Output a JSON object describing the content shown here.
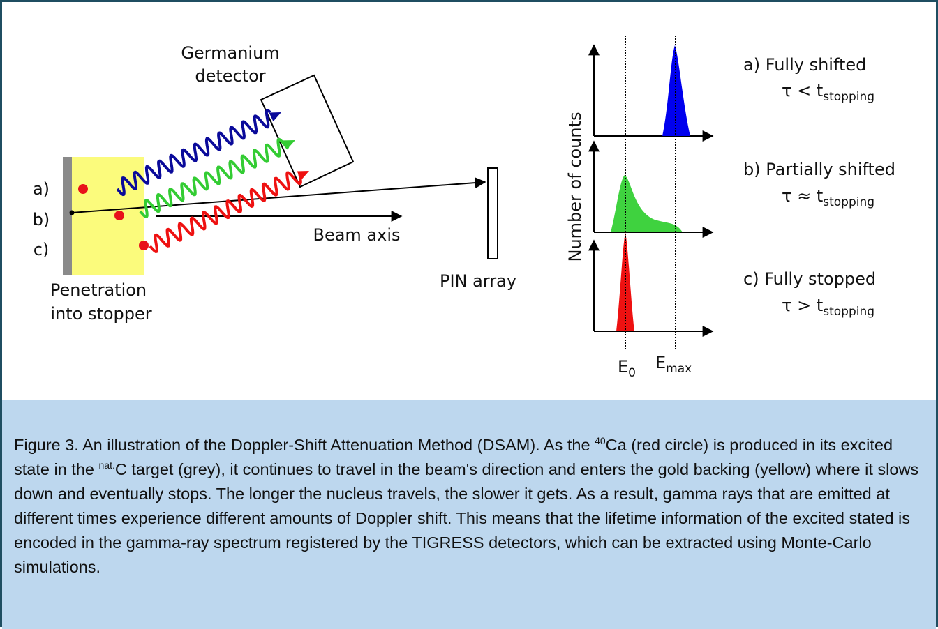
{
  "diagram": {
    "detector_label": [
      "Germanium",
      "detector"
    ],
    "sample_labels": [
      "a)",
      "b)",
      "c)"
    ],
    "beam_label": "Beam axis",
    "pin_label": "PIN array",
    "stopper_label": [
      "Penetration",
      "into stopper"
    ],
    "y_axis_label": "Number of counts",
    "energy_labels": [
      {
        "base": "E",
        "sub": "0"
      },
      {
        "base": "E",
        "sub": "max"
      }
    ],
    "cases": [
      {
        "title": "a) Fully shifted",
        "relation": "τ < t",
        "sub": "stopping"
      },
      {
        "title": "b) Partially shifted",
        "relation": "τ ≈ t",
        "sub": "stopping"
      },
      {
        "title": "c) Fully stopped",
        "relation": "τ > t",
        "sub": "stopping"
      }
    ]
  },
  "caption": {
    "segments": [
      "Figure 3. An illustration of the Doppler-Shift Attenuation Method (DSAM). As the ",
      "Ca (red circle) is produced in its excited state in the ",
      "C target (grey), it continues to travel in the beam's direction and enters the gold backing (yellow) where it slows down and eventually stops. The longer the nucleus travels, the slower it gets. As a result, gamma rays that are emitted at different times experience different amounts of Doppler shift. This means that the lifetime information of the excited stated is encoded in the gamma-ray spectrum registered by the TIGRESS detectors, which can be extracted using Monte-Carlo simulations."
    ],
    "superscripts": [
      "40",
      "nat."
    ]
  }
}
